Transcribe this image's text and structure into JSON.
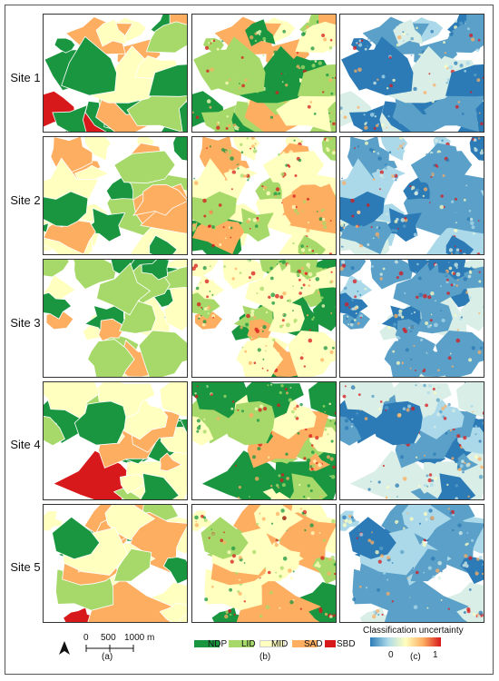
{
  "sites": [
    "Site 1",
    "Site 2",
    "Site 3",
    "Site 4",
    "Site 5"
  ],
  "scalebar": {
    "ticks": [
      "0",
      "500",
      "1000 m"
    ]
  },
  "column_labels": [
    "(a)",
    "(b)",
    "(c)"
  ],
  "legend_b": [
    {
      "label": "NDP",
      "color": "#1a9641"
    },
    {
      "label": "LID",
      "color": "#a6d96a"
    },
    {
      "label": "MID",
      "color": "#ffffbf"
    },
    {
      "label": "SAD",
      "color": "#fdae61"
    },
    {
      "label": "SBD",
      "color": "#d7191c"
    }
  ],
  "legend_c": {
    "title": "Classification uncertainty",
    "min": "0",
    "max": "1"
  }
}
